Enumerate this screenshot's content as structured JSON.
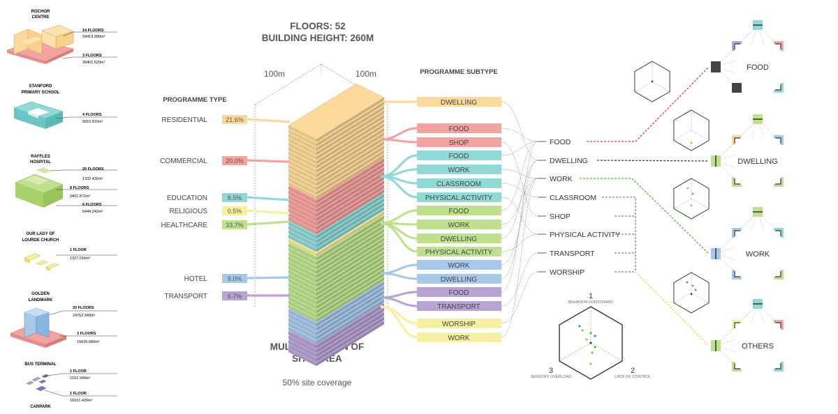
{
  "header": {
    "floors": "FLOORS: 52",
    "height": "BUILDING HEIGHT: 260M",
    "dim_left": "100m",
    "dim_right": "100m"
  },
  "headings": {
    "programme_type": "PROGRAMME TYPE",
    "programme_subtype": "PROGRAMME SUBTYPE"
  },
  "footer": {
    "line1": "MULTIPLICATION OF",
    "line2": "SITE AREA",
    "coverage": "50% site coverage"
  },
  "colors": {
    "residential": "#fbd99a",
    "commercial": "#f3a3a0",
    "education": "#92d8d6",
    "religious": "#f7f0a2",
    "healthcare": "#bfe08f",
    "hotel": "#a8c8ea",
    "transport": "#b8a3d4",
    "food_accent": "#d94040",
    "dwelling_accent": "#2b3a8f",
    "work_accent": "#4cbb3a",
    "others_accent": "#e2dd4a"
  },
  "buildings": [
    {
      "name": "ROCHOR\nCENTRE",
      "lines": [
        {
          "floors": "14 FLOORS",
          "area": "59419.990m²"
        },
        {
          "floors": "3 FLOORS",
          "area": "39401.520m²"
        }
      ]
    },
    {
      "name": "STANFORD\nPRIMARY SCHOOL",
      "lines": [
        {
          "floors": "4 FLOORS",
          "area": "5816.916m²"
        }
      ]
    },
    {
      "name": "RAFFLES\nHOSPITAL",
      "lines": [
        {
          "floors": "20 FLOORS",
          "area": "1332.430m²"
        },
        {
          "floors": "8 FLOORS",
          "area": "3401.872m²"
        },
        {
          "floors": "6 FLOORS",
          "area": "6444.242m²"
        }
      ]
    },
    {
      "name": "OUR LADY OF\nLOURDE CHURCH",
      "lines": [
        {
          "floors": "1 FLOOR",
          "area": "1327.016m²"
        }
      ]
    },
    {
      "name": "GOLDEN\nLANDMARK",
      "lines": [
        {
          "floors": "20 FLOORS",
          "area": "24762.349m²"
        },
        {
          "floors": "3 FLOORS",
          "area": "15639.680m²"
        }
      ]
    },
    {
      "name": "BUS TERMINAL",
      "lines": [
        {
          "floors": "1 FLOOR",
          "area": "2152.349m²"
        },
        {
          "floors": "1 FLOOR",
          "area": "16151.430m²"
        }
      ]
    },
    {
      "name": "CARPARK",
      "lines": []
    }
  ],
  "programme_types": [
    {
      "label": "RESIDENTIAL",
      "value": "21.6%",
      "color": "#fbd99a"
    },
    {
      "label": "COMMERCIAL",
      "value": "20.0%",
      "color": "#f3a3a0"
    },
    {
      "label": "EDUCATION",
      "value": "8.5%",
      "color": "#92d8d6"
    },
    {
      "label": "RELIGIOUS",
      "value": "0.5%",
      "color": "#f7f0a2"
    },
    {
      "label": "HEALTHCARE",
      "value": "33.7%",
      "color": "#bfe08f"
    },
    {
      "label": "HOTEL",
      "value": "9.0%",
      "color": "#a8c8ea"
    },
    {
      "label": "TRANSPORT",
      "value": "6.7%",
      "color": "#b8a3d4"
    }
  ],
  "subtypes": [
    {
      "label": "DWELLING",
      "color": "#fbd99a"
    },
    {
      "label": "FOOD",
      "color": "#f3a3a0"
    },
    {
      "label": "SHOP",
      "color": "#f3a3a0"
    },
    {
      "label": "FOOD",
      "color": "#92d8d6"
    },
    {
      "label": "WORK",
      "color": "#92d8d6"
    },
    {
      "label": "CLASSROOM",
      "color": "#92d8d6"
    },
    {
      "label": "PHYSICAL ACTIVITY",
      "color": "#92d8d6"
    },
    {
      "label": "FOOD",
      "color": "#bfe08f"
    },
    {
      "label": "WORK",
      "color": "#bfe08f"
    },
    {
      "label": "DWELLING",
      "color": "#bfe08f"
    },
    {
      "label": "PHYSICAL ACTIVITY",
      "color": "#bfe08f"
    },
    {
      "label": "WORK",
      "color": "#a8c8ea"
    },
    {
      "label": "DWELLING",
      "color": "#a8c8ea"
    },
    {
      "label": "FOOD",
      "color": "#b8a3d4"
    },
    {
      "label": "TRANSPORT",
      "color": "#b8a3d4"
    },
    {
      "label": "WORSHIP",
      "color": "#f7f0a2"
    },
    {
      "label": "WORK",
      "color": "#f7f0a2"
    }
  ],
  "activities": [
    "FOOD",
    "DWELLING",
    "WORK",
    "CLASSROOM",
    "SHOP",
    "PHYSICAL ACTIVITY",
    "TRANSPORT",
    "WORSHIP"
  ],
  "clusters": [
    "FOOD",
    "DWELLING",
    "WORK",
    "OTHERS"
  ],
  "axes": {
    "top_num": "1",
    "top_label": "BEHAVIOR CONSTRAINT",
    "left_num": "3",
    "left_label": "SENSORY OVERLOAD",
    "right_num": "2",
    "right_label": "LACK OF CONTROL"
  }
}
